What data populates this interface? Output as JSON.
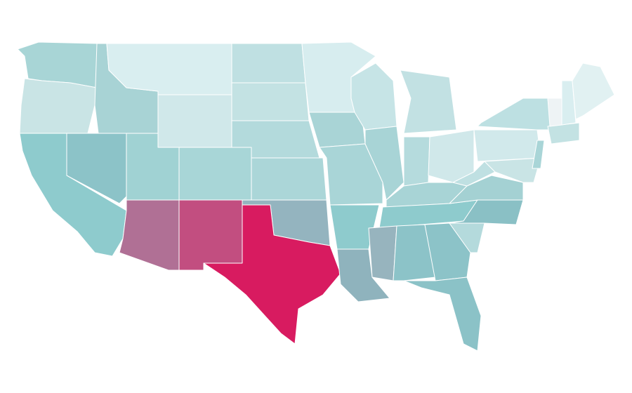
{
  "map": {
    "type": "choropleth",
    "border_color": "#ffffff",
    "background": "#ffffff",
    "region_colors": [
      "#a8d5d6",
      "#c9e4e5",
      "#8ecbcd",
      "#8cc3c8",
      "#a8d3d5",
      "#d9eef0",
      "#d0e8ea",
      "#a0d2d3",
      "#a8d6d7",
      "#b07095",
      "#c24e80",
      "#bfe0e2",
      "#c3e2e3",
      "#b3dadc",
      "#abd6d8",
      "#94b4bf",
      "#d81b60",
      "#d7edef",
      "#a9d4d6",
      "#a9d5d7",
      "#8ecbcd",
      "#8fb3bd",
      "#c6e4e6",
      "#a8d4d6",
      "#c2e1e3",
      "#b5dbdd",
      "#d0e8ea",
      "#a8d4d6",
      "#8ecbcd",
      "#97b4be",
      "#8cc3c8",
      "#8cc3c8",
      "#8bc2c7",
      "#b4dadc",
      "#8ac0c5",
      "#a4d1d3",
      "#bfe0e2",
      "#d1e9eb",
      "#bde0e2",
      "#c9e4e5",
      "#a9d5d7",
      "#c3e2e3",
      "#eef3f5",
      "#d9eef0",
      "#e1f1f2"
    ]
  }
}
